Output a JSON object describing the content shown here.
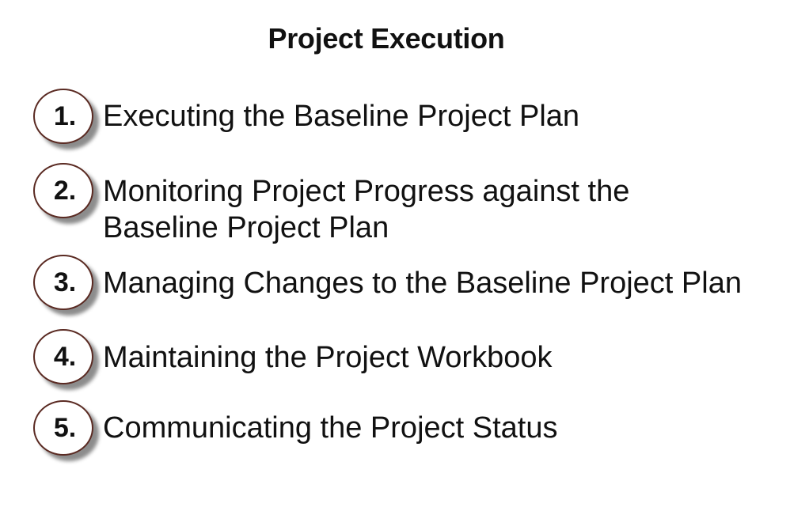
{
  "title": "Project Execution",
  "items": [
    {
      "number": "1.",
      "line1": "Executing the Baseline Project Plan",
      "line2": ""
    },
    {
      "number": "2.",
      "line1": "Monitoring Project Progress against the",
      "line2": "Baseline Project Plan"
    },
    {
      "number": "3.",
      "line1": "Managing Changes to the Baseline Project Plan",
      "line2": ""
    },
    {
      "number": "4.",
      "line1": "Maintaining the Project Workbook",
      "line2": ""
    },
    {
      "number": "5.",
      "line1": "Communicating the Project Status",
      "line2": ""
    }
  ],
  "colors": {
    "circle_border": "#5a2a22",
    "text": "#111111"
  }
}
